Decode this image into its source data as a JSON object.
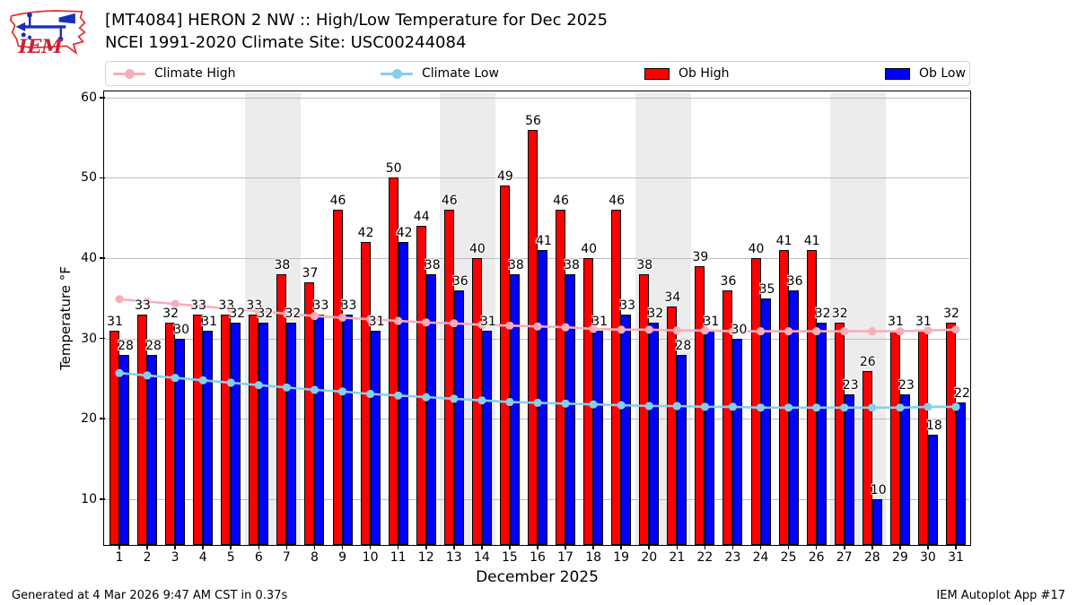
{
  "header": {
    "logo": {
      "text": "IEM"
    },
    "title_line1": "[MT4084] HERON 2 NW :: High/Low Temperature for Dec 2025",
    "title_line2": "NCEI 1991-2020 Climate Site: USC00244084"
  },
  "legend": {
    "items": [
      {
        "label": "Climate High",
        "type": "line",
        "color": "#f7aebb"
      },
      {
        "label": "Climate Low",
        "type": "line",
        "color": "#87ceeb"
      },
      {
        "label": "Ob High",
        "type": "patch",
        "color": "#ff0000"
      },
      {
        "label": "Ob Low",
        "type": "patch",
        "color": "#0000ff"
      }
    ]
  },
  "chart_data": {
    "type": "bar",
    "title": "[MT4084] HERON 2 NW :: High/Low Temperature for Dec 2025",
    "subtitle": "NCEI 1991-2020 Climate Site: USC00244084",
    "xlabel": "December 2025",
    "ylabel": "Temperature °F",
    "x": [
      1,
      2,
      3,
      4,
      5,
      6,
      7,
      8,
      9,
      10,
      11,
      12,
      13,
      14,
      15,
      16,
      17,
      18,
      19,
      20,
      21,
      22,
      23,
      24,
      25,
      26,
      27,
      28,
      29,
      30,
      31
    ],
    "ylim": [
      4.3,
      60.65
    ],
    "yticks": [
      10,
      20,
      30,
      40,
      50,
      60
    ],
    "grid": true,
    "legend_position": "top",
    "weekend_bands_days": [
      [
        5.5,
        7.5
      ],
      [
        12.5,
        14.5
      ],
      [
        19.5,
        21.5
      ],
      [
        26.5,
        28.5
      ]
    ],
    "series": [
      {
        "name": "Ob High",
        "type": "bar",
        "color": "#ff0000",
        "values": [
          31,
          33,
          32,
          33,
          33,
          33,
          38,
          37,
          46,
          42,
          50,
          44,
          46,
          40,
          49,
          56,
          46,
          40,
          46,
          38,
          34,
          39,
          36,
          40,
          41,
          41,
          32,
          26,
          31,
          31,
          32
        ]
      },
      {
        "name": "Ob Low",
        "type": "bar",
        "color": "#0000ff",
        "values": [
          28,
          28,
          30,
          31,
          32,
          32,
          32,
          33,
          33,
          31,
          42,
          38,
          36,
          31,
          38,
          41,
          38,
          31,
          33,
          32,
          28,
          31,
          30,
          35,
          36,
          32,
          23,
          10,
          23,
          18,
          22
        ]
      },
      {
        "name": "Climate High",
        "type": "line",
        "color": "#f7aebb",
        "values": [
          34.9,
          34.6,
          34.3,
          34.0,
          33.7,
          33.4,
          33.1,
          32.8,
          32.6,
          32.4,
          32.2,
          32.0,
          31.9,
          31.7,
          31.6,
          31.5,
          31.4,
          31.2,
          31.1,
          31.1,
          31.0,
          31.0,
          30.9,
          30.9,
          30.9,
          30.9,
          30.9,
          30.9,
          30.9,
          31.0,
          31.1
        ]
      },
      {
        "name": "Climate Low",
        "type": "line",
        "color": "#87ceeb",
        "values": [
          25.7,
          25.4,
          25.1,
          24.8,
          24.5,
          24.2,
          23.9,
          23.6,
          23.4,
          23.1,
          22.9,
          22.7,
          22.5,
          22.3,
          22.1,
          22.0,
          21.9,
          21.8,
          21.7,
          21.6,
          21.6,
          21.5,
          21.5,
          21.4,
          21.4,
          21.4,
          21.4,
          21.4,
          21.4,
          21.5,
          21.5
        ]
      }
    ]
  },
  "footer": {
    "generated": "Generated at 4 Mar 2026 9:47 AM CST in 0.37s",
    "app": "IEM Autoplot App #17"
  }
}
